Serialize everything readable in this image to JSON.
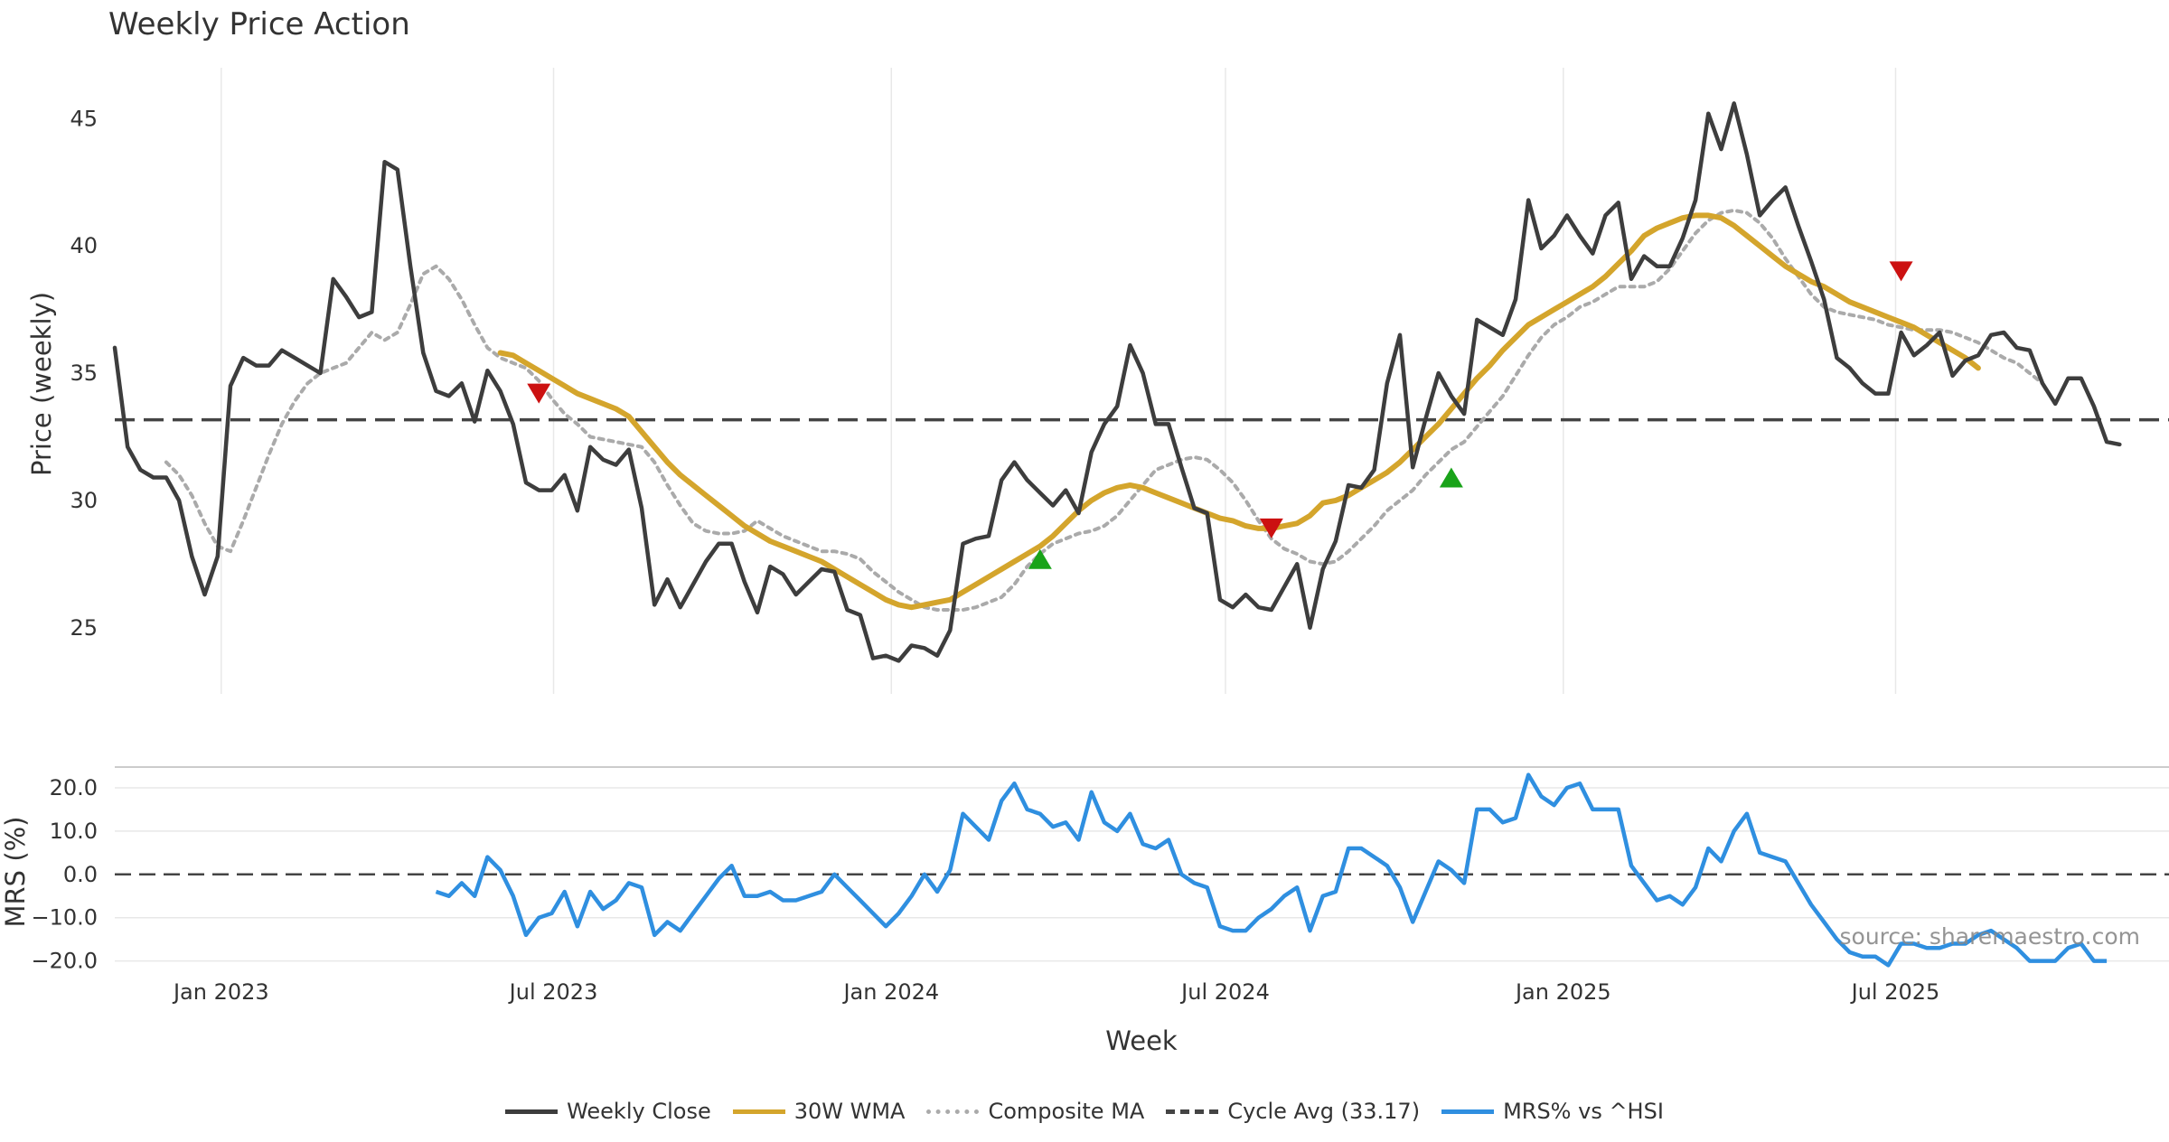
{
  "colors": {
    "close": "#3d3d3d",
    "wma": "#d4a52c",
    "composite": "#aaaaaa",
    "cycle": "#444444",
    "mrs": "#2f8fe0",
    "buy": "#19a319",
    "sell": "#cc1111",
    "grid": "#e8e8e8",
    "text": "#333333",
    "watermark": "#888888"
  },
  "chart_data": {
    "type": "line",
    "title": "Weekly Price Action",
    "xlabel": "Week",
    "start_date": "2022-11-04",
    "x_ticks": [
      "Jan 2023",
      "Jul 2023",
      "Jan 2024",
      "Jul 2024",
      "Jan 2025",
      "Jul 2025"
    ],
    "x_tick_dates": [
      "2023-01-01",
      "2023-07-01",
      "2024-01-01",
      "2024-07-01",
      "2025-01-01",
      "2025-07-01"
    ],
    "price_panel": {
      "ylabel": "Price (weekly)",
      "ylim": [
        22.4,
        47.0
      ],
      "y_ticks": [
        "25",
        "30",
        "35",
        "40",
        "45"
      ],
      "y_tick_values": [
        25,
        30,
        35,
        40,
        45
      ],
      "cycle_avg": 33.17,
      "series": [
        {
          "name": "Weekly Close",
          "start_index": 0,
          "values": [
            36.0,
            32.1,
            31.2,
            30.9,
            30.9,
            30.0,
            27.8,
            26.3,
            27.8,
            34.5,
            35.6,
            35.3,
            35.3,
            35.9,
            35.6,
            35.3,
            35.0,
            38.7,
            38.0,
            37.2,
            37.4,
            43.3,
            43.0,
            39.2,
            35.8,
            34.3,
            34.1,
            34.6,
            33.1,
            35.1,
            34.3,
            33.0,
            30.7,
            30.4,
            30.4,
            31.0,
            29.6,
            32.1,
            31.6,
            31.4,
            32.0,
            29.7,
            25.9,
            26.9,
            25.8,
            26.7,
            27.6,
            28.3,
            28.3,
            26.8,
            25.6,
            27.4,
            27.1,
            26.3,
            26.8,
            27.3,
            27.2,
            25.7,
            25.5,
            23.8,
            23.9,
            23.7,
            24.3,
            24.2,
            23.9,
            24.9,
            28.3,
            28.5,
            28.6,
            30.8,
            31.5,
            30.8,
            30.3,
            29.8,
            30.4,
            29.5,
            31.9,
            33.0,
            33.7,
            36.1,
            35.0,
            33.0,
            33.0,
            31.3,
            29.7,
            29.5,
            26.1,
            25.8,
            26.3,
            25.8,
            25.7,
            26.6,
            27.5,
            25.0,
            27.3,
            28.4,
            30.6,
            30.5,
            31.2,
            34.6,
            36.5,
            31.3,
            33.2,
            35.0,
            34.1,
            33.4,
            37.1,
            36.8,
            36.5,
            37.9,
            41.8,
            39.9,
            40.4,
            41.2,
            40.4,
            39.7,
            41.2,
            41.7,
            38.7,
            39.6,
            39.2,
            39.2,
            40.3,
            41.8,
            45.2,
            43.8,
            45.6,
            43.6,
            41.2,
            41.8,
            42.3,
            40.8,
            39.4,
            37.9,
            35.6,
            35.2,
            34.6,
            34.2,
            34.2,
            36.6,
            35.7,
            36.1,
            36.6,
            34.9,
            35.5,
            35.7,
            36.5,
            36.6,
            36.0,
            35.9,
            34.6,
            33.8,
            34.8,
            34.8,
            33.7,
            32.3,
            32.2
          ]
        },
        {
          "name": "30W WMA",
          "start_index": 30,
          "values": [
            35.8,
            35.7,
            35.4,
            35.1,
            34.8,
            34.5,
            34.2,
            34.0,
            33.8,
            33.6,
            33.3,
            32.7,
            32.1,
            31.5,
            31.0,
            30.6,
            30.2,
            29.8,
            29.4,
            29.0,
            28.7,
            28.4,
            28.2,
            28.0,
            27.8,
            27.6,
            27.3,
            27.0,
            26.7,
            26.4,
            26.1,
            25.9,
            25.8,
            25.9,
            26.0,
            26.1,
            26.4,
            26.7,
            27.0,
            27.3,
            27.6,
            27.9,
            28.2,
            28.6,
            29.1,
            29.6,
            30.0,
            30.3,
            30.5,
            30.6,
            30.5,
            30.3,
            30.1,
            29.9,
            29.7,
            29.5,
            29.3,
            29.2,
            29.0,
            28.9,
            28.9,
            29.0,
            29.1,
            29.4,
            29.9,
            30.0,
            30.2,
            30.5,
            30.8,
            31.1,
            31.5,
            32.0,
            32.5,
            33.0,
            33.6,
            34.2,
            34.8,
            35.3,
            35.9,
            36.4,
            36.9,
            37.2,
            37.5,
            37.8,
            38.1,
            38.4,
            38.8,
            39.3,
            39.8,
            40.4,
            40.7,
            40.9,
            41.1,
            41.2,
            41.2,
            41.1,
            40.8,
            40.4,
            40.0,
            39.6,
            39.2,
            38.9,
            38.6,
            38.4,
            38.1,
            37.8,
            37.6,
            37.4,
            37.2,
            37.0,
            36.8,
            36.5,
            36.2,
            35.9,
            35.6,
            35.2
          ]
        },
        {
          "name": "Composite MA",
          "start_index": 4,
          "values": [
            31.5,
            31.0,
            30.2,
            29.1,
            28.2,
            28.0,
            29.2,
            30.5,
            31.8,
            33.0,
            33.9,
            34.6,
            35.0,
            35.2,
            35.4,
            36.0,
            36.6,
            36.3,
            36.6,
            37.7,
            38.9,
            39.2,
            38.7,
            37.9,
            36.9,
            36.0,
            35.6,
            35.4,
            35.2,
            34.7,
            34.0,
            33.4,
            33.0,
            32.5,
            32.4,
            32.3,
            32.2,
            32.1,
            31.5,
            30.6,
            29.8,
            29.1,
            28.8,
            28.7,
            28.7,
            28.8,
            29.2,
            28.9,
            28.6,
            28.4,
            28.2,
            28.0,
            28.0,
            27.9,
            27.7,
            27.2,
            26.8,
            26.4,
            26.1,
            25.8,
            25.7,
            25.7,
            25.7,
            25.8,
            26.0,
            26.2,
            26.7,
            27.4,
            27.9,
            28.3,
            28.5,
            28.7,
            28.8,
            29.0,
            29.4,
            30.0,
            30.6,
            31.2,
            31.4,
            31.6,
            31.7,
            31.6,
            31.2,
            30.7,
            30.0,
            29.2,
            28.5,
            28.1,
            27.9,
            27.6,
            27.5,
            27.6,
            28.0,
            28.5,
            29.0,
            29.6,
            30.0,
            30.4,
            31.0,
            31.5,
            32.0,
            32.3,
            32.9,
            33.5,
            34.1,
            34.9,
            35.7,
            36.4,
            36.9,
            37.2,
            37.6,
            37.8,
            38.1,
            38.4,
            38.4,
            38.4,
            38.6,
            39.1,
            39.8,
            40.5,
            41.0,
            41.3,
            41.4,
            41.3,
            40.9,
            40.3,
            39.5,
            38.8,
            38.1,
            37.6,
            37.4,
            37.3,
            37.2,
            37.1,
            36.9,
            36.8,
            36.7,
            36.7,
            36.7,
            36.6,
            36.4,
            36.2,
            35.9,
            35.6,
            35.4,
            35.0,
            34.6
          ]
        }
      ],
      "signals": [
        {
          "type": "sell",
          "index": 33,
          "value": 34.2
        },
        {
          "type": "buy",
          "index": 72,
          "value": 27.7
        },
        {
          "type": "sell",
          "index": 90,
          "value": 28.9
        },
        {
          "type": "buy",
          "index": 104,
          "value": 30.9
        },
        {
          "type": "sell",
          "index": 139,
          "value": 39.0
        }
      ]
    },
    "mrs_panel": {
      "ylabel": "MRS (%)",
      "ylim": [
        -23,
        25
      ],
      "y_ticks": [
        "−20.0",
        "−10.0",
        "0.0",
        "10.0",
        "20.0"
      ],
      "y_tick_values": [
        -20,
        -10,
        0,
        10,
        20
      ],
      "series": [
        {
          "name": "MRS% vs ^HSI",
          "start_index": 25,
          "values": [
            -4,
            -5,
            -2,
            -5,
            4,
            1,
            -5,
            -14,
            -10,
            -9,
            -4,
            -12,
            -4,
            -8,
            -6,
            -2,
            -3,
            -14,
            -11,
            -13,
            -9,
            -5,
            -1,
            2,
            -5,
            -5,
            -4,
            -6,
            -6,
            -5,
            -4,
            0,
            -3,
            -6,
            -9,
            -12,
            -9,
            -5,
            0,
            -4,
            1,
            14,
            11,
            8,
            17,
            21,
            15,
            14,
            11,
            12,
            8,
            19,
            12,
            10,
            14,
            7,
            6,
            8,
            0,
            -2,
            -3,
            -12,
            -13,
            -13,
            -10,
            -8,
            -5,
            -3,
            -13,
            -5,
            -4,
            6,
            6,
            4,
            2,
            -3,
            -11,
            -4,
            3,
            1,
            -2,
            15,
            15,
            12,
            13,
            23,
            18,
            16,
            20,
            21,
            15,
            15,
            15,
            2,
            -2,
            -6,
            -5,
            -7,
            -3,
            6,
            3,
            10,
            14,
            5,
            4,
            3,
            -2,
            -7,
            -11,
            -15,
            -18,
            -19,
            -19,
            -21,
            -16,
            -16,
            -17,
            -17,
            -16,
            -16,
            -14,
            -13,
            -15,
            -17,
            -20,
            -20,
            -20,
            -17,
            -16,
            -20,
            -20
          ]
        }
      ]
    },
    "legend": [
      {
        "label": "Weekly Close",
        "key": "close",
        "style": "solid"
      },
      {
        "label": "30W WMA",
        "key": "wma",
        "style": "solid"
      },
      {
        "label": "Composite MA",
        "key": "composite",
        "style": "dotted"
      },
      {
        "label": "Cycle Avg (33.17)",
        "key": "cycle",
        "style": "dashed"
      },
      {
        "label": "MRS% vs ^HSI",
        "key": "mrs",
        "style": "solid"
      }
    ],
    "watermark": "source: sharemaestro.com"
  }
}
